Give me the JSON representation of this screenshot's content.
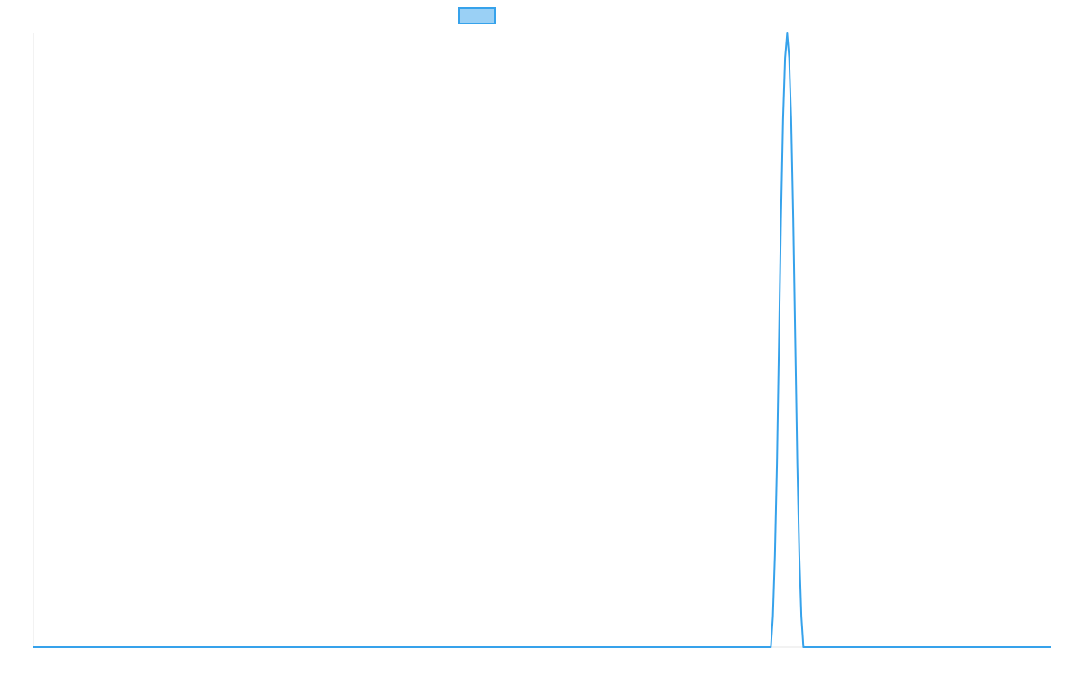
{
  "chart_data": {
    "type": "line",
    "title": "",
    "xlabel": "",
    "ylabel": "",
    "legend": {
      "placement": "top-center",
      "entries": [
        {
          "label": "",
          "fill_color": "#9ad0f5",
          "stroke_color": "#36a2eb"
        }
      ]
    },
    "grid": false,
    "xlim": [
      0,
      1000
    ],
    "ylim": [
      0,
      1
    ],
    "series": [
      {
        "color": "#36a2eb",
        "points": [
          [
            0,
            0
          ],
          [
            100,
            0
          ],
          [
            200,
            0
          ],
          [
            300,
            0
          ],
          [
            400,
            0
          ],
          [
            500,
            0
          ],
          [
            600,
            0
          ],
          [
            700,
            0
          ],
          [
            725,
            0
          ],
          [
            727,
            0.05
          ],
          [
            729,
            0.15
          ],
          [
            731,
            0.3
          ],
          [
            733,
            0.5
          ],
          [
            735,
            0.7
          ],
          [
            737,
            0.86
          ],
          [
            739,
            0.96
          ],
          [
            741,
            1.0
          ],
          [
            743,
            0.96
          ],
          [
            745,
            0.86
          ],
          [
            747,
            0.7
          ],
          [
            749,
            0.5
          ],
          [
            751,
            0.3
          ],
          [
            753,
            0.15
          ],
          [
            755,
            0.05
          ],
          [
            757,
            0
          ],
          [
            800,
            0
          ],
          [
            900,
            0
          ],
          [
            1000,
            0
          ]
        ]
      }
    ]
  }
}
